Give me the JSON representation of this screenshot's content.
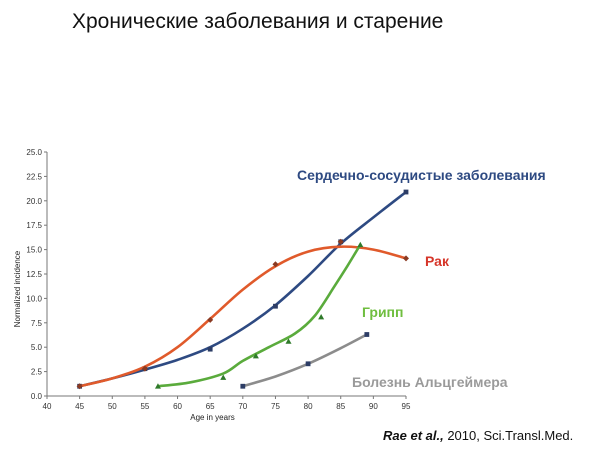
{
  "header": {
    "title": "Хронические заболевания и старение"
  },
  "citation": {
    "authors": "Rae et al.,",
    "rest": " 2010, Sci.Transl.Med."
  },
  "chart_data": {
    "type": "line",
    "xlabel": "Age in years",
    "ylabel": "Normalized incidence",
    "xlim": [
      40,
      95
    ],
    "ylim": [
      0,
      25
    ],
    "x_ticks": [
      "40",
      "45",
      "50",
      "55",
      "60",
      "65",
      "70",
      "75",
      "80",
      "85",
      "90",
      "95"
    ],
    "y_ticks": [
      "0.0",
      "2.5",
      "5.0",
      "7.5",
      "10.0",
      "12.5",
      "15.0",
      "17.5",
      "20.0",
      "22.5",
      "25.0"
    ],
    "grid": false,
    "legend": "none",
    "series": [
      {
        "name": "Сердечно-сосудистые заболевания",
        "color": "#2e4a82",
        "marker": "square",
        "points": [
          [
            45,
            1.0
          ],
          [
            55,
            2.8
          ],
          [
            65,
            4.8
          ],
          [
            75,
            9.2
          ],
          [
            85,
            15.8
          ],
          [
            95,
            20.9
          ]
        ],
        "curve": [
          [
            45,
            1.0
          ],
          [
            50,
            1.8
          ],
          [
            55,
            2.7
          ],
          [
            60,
            3.7
          ],
          [
            65,
            5.0
          ],
          [
            70,
            6.9
          ],
          [
            75,
            9.3
          ],
          [
            80,
            12.3
          ],
          [
            85,
            15.6
          ],
          [
            90,
            18.3
          ],
          [
            95,
            20.9
          ]
        ]
      },
      {
        "name": "Рак",
        "color": "#e05a2b",
        "marker": "diamond",
        "points": [
          [
            45,
            1.0
          ],
          [
            55,
            2.8
          ],
          [
            65,
            7.8
          ],
          [
            75,
            13.5
          ],
          [
            85,
            15.8
          ],
          [
            95,
            14.1
          ]
        ],
        "curve": [
          [
            45,
            1.0
          ],
          [
            50,
            1.8
          ],
          [
            55,
            3.0
          ],
          [
            60,
            5.0
          ],
          [
            65,
            7.9
          ],
          [
            70,
            10.9
          ],
          [
            75,
            13.3
          ],
          [
            80,
            14.8
          ],
          [
            85,
            15.3
          ],
          [
            90,
            15.0
          ],
          [
            95,
            14.1
          ]
        ]
      },
      {
        "name": "Грипп",
        "color": "#5aab3c",
        "marker": "triangle",
        "points": [
          [
            57,
            1.0
          ],
          [
            67,
            1.9
          ],
          [
            72,
            4.1
          ],
          [
            77,
            5.6
          ],
          [
            82,
            8.1
          ],
          [
            88,
            15.5
          ]
        ],
        "curve": [
          [
            57,
            1.0
          ],
          [
            62,
            1.4
          ],
          [
            67,
            2.3
          ],
          [
            70,
            3.6
          ],
          [
            74,
            5.0
          ],
          [
            78,
            6.4
          ],
          [
            81,
            8.2
          ],
          [
            84,
            11.2
          ],
          [
            86,
            13.3
          ],
          [
            88,
            15.5
          ]
        ]
      },
      {
        "name": "Болезнь Альцгеймера",
        "color": "#8c8c8c",
        "marker": "square",
        "points": [
          [
            70,
            1.0
          ],
          [
            80,
            3.3
          ],
          [
            89,
            6.3
          ]
        ],
        "curve": [
          [
            70,
            1.0
          ],
          [
            75,
            2.0
          ],
          [
            80,
            3.3
          ],
          [
            85,
            4.9
          ],
          [
            89,
            6.3
          ]
        ]
      }
    ]
  }
}
